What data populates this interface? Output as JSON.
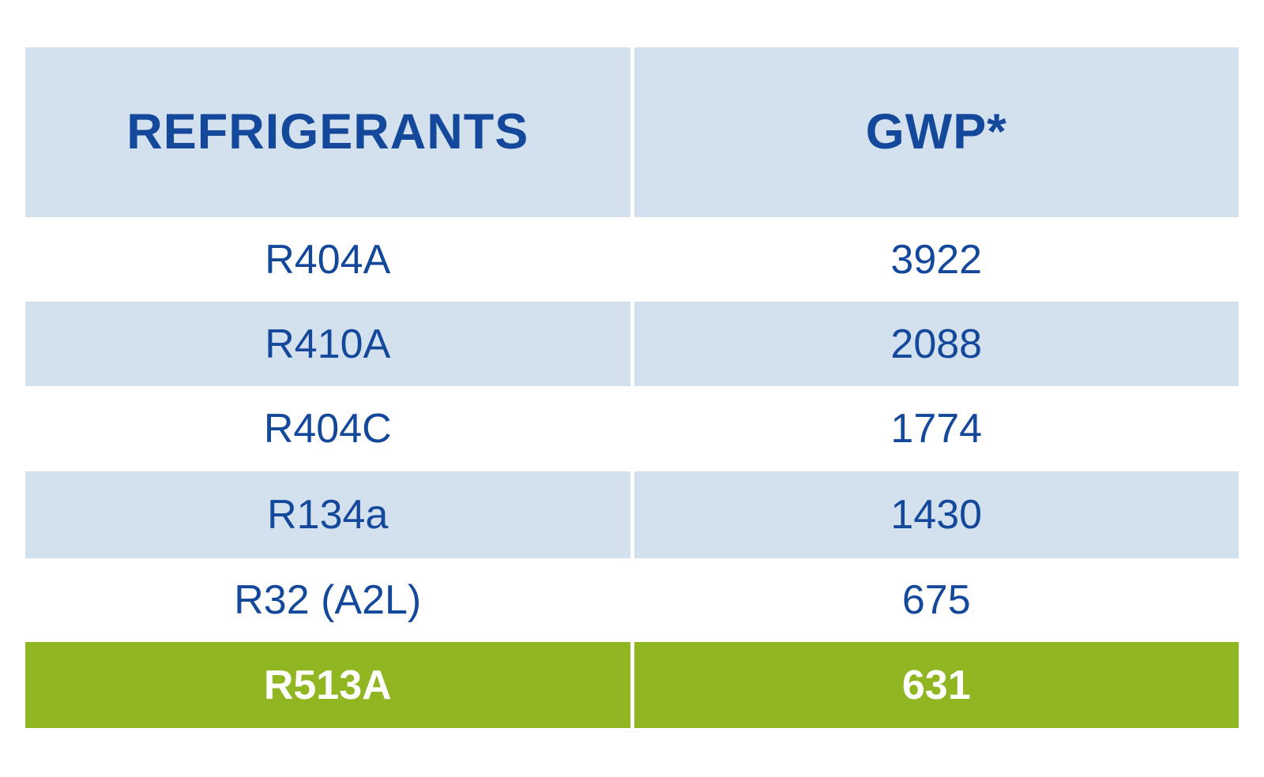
{
  "table": {
    "header": {
      "refrigerants": "REFRIGERANTS",
      "gwp": "GWP*"
    },
    "rows": [
      {
        "refrigerant": "R404A",
        "gwp": "3922"
      },
      {
        "refrigerant": "R410A",
        "gwp": "2088"
      },
      {
        "refrigerant": "R404C",
        "gwp": "1774"
      },
      {
        "refrigerant": "R134a",
        "gwp": "1430"
      },
      {
        "refrigerant": "R32 (A2L)",
        "gwp": "675"
      },
      {
        "refrigerant": "R513A",
        "gwp": "631"
      }
    ]
  },
  "colors": {
    "header_band": "#d3e0ee",
    "row_alternate": "#d3e0ee",
    "row_plain": "#ffffff",
    "highlight_row": "#90b721",
    "text_blue": "#14489a",
    "highlight_text": "#ffffff"
  },
  "chart_data": {
    "type": "table",
    "title": "",
    "columns": [
      "REFRIGERANTS",
      "GWP*"
    ],
    "rows": [
      [
        "R404A",
        3922
      ],
      [
        "R410A",
        2088
      ],
      [
        "R404C",
        1774
      ],
      [
        "R134a",
        1430
      ],
      [
        "R32 (A2L)",
        675
      ],
      [
        "R513A",
        631
      ]
    ],
    "highlighted_row": "R513A",
    "layout_hints": {
      "header_background": "#d3e0ee",
      "zebra_striping": true,
      "highlight_color": "#90b721",
      "column_divider": "white 5px gap"
    }
  }
}
